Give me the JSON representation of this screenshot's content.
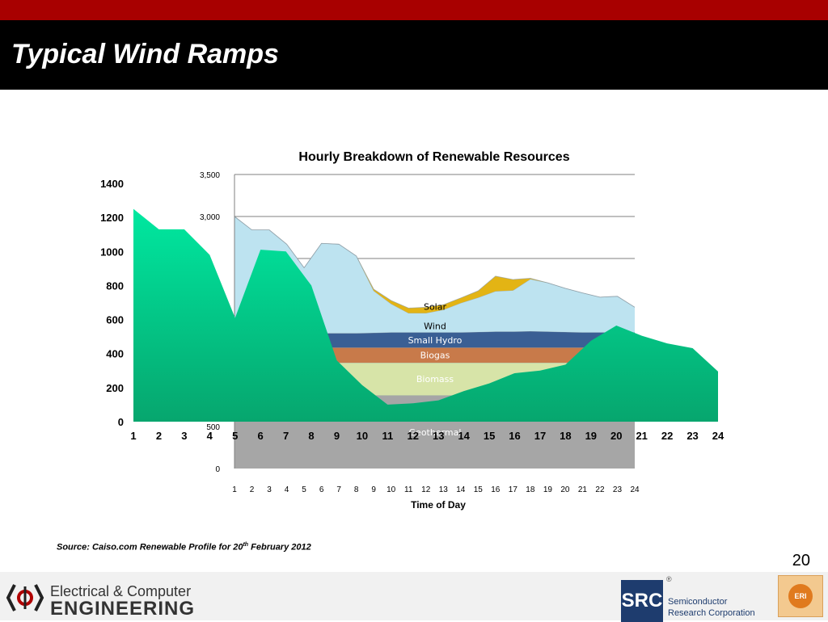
{
  "slide": {
    "title": "Typical Wind Ramps",
    "page_number": "20",
    "source_prefix": "Source: Caiso.com Renewable Profile for 20",
    "source_sup": "th",
    "source_suffix": " February 2012"
  },
  "footer": {
    "ece_line1": "Electrical & Computer",
    "ece_line2": "ENGINEERING",
    "src_abbr": "SRC",
    "src_reg": "®",
    "src_line1": "Semiconductor",
    "src_line2": "Research Corporation",
    "eri_label": "ERI"
  },
  "chart_data": [
    {
      "type": "area",
      "title": "Hourly Breakdown of Renewable Resources",
      "xlabel": "Time of Day",
      "ylabel": "",
      "ylim": [
        0,
        3500
      ],
      "yticks_visible": [
        "0",
        "500",
        "3,000",
        "3,500"
      ],
      "x": [
        1,
        2,
        3,
        4,
        5,
        6,
        7,
        8,
        9,
        10,
        11,
        12,
        13,
        14,
        15,
        16,
        17,
        18,
        19,
        20,
        21,
        22,
        23,
        24
      ],
      "stacked": true,
      "series": [
        {
          "name": "Geothermal",
          "color": "#a6a6a6",
          "values": [
            870,
            870,
            870,
            870,
            870,
            870,
            870,
            870,
            870,
            870,
            870,
            870,
            870,
            870,
            870,
            870,
            870,
            870,
            870,
            870,
            870,
            870,
            870,
            870
          ]
        },
        {
          "name": "Biomass",
          "color": "#d7e4a8",
          "values": [
            390,
            390,
            390,
            390,
            390,
            390,
            390,
            390,
            390,
            390,
            390,
            390,
            390,
            390,
            390,
            390,
            390,
            390,
            390,
            390,
            390,
            390,
            390,
            390
          ]
        },
        {
          "name": "Biogas",
          "color": "#c87a4a",
          "values": [
            180,
            180,
            180,
            180,
            180,
            180,
            180,
            180,
            180,
            180,
            180,
            180,
            180,
            180,
            180,
            180,
            180,
            180,
            180,
            180,
            180,
            180,
            180,
            180
          ]
        },
        {
          "name": "Small Hydro",
          "color": "#3a5f94",
          "values": [
            170,
            170,
            170,
            170,
            170,
            170,
            170,
            170,
            175,
            180,
            180,
            180,
            180,
            180,
            185,
            190,
            190,
            195,
            190,
            185,
            180,
            180,
            180,
            180
          ]
        },
        {
          "name": "Wind",
          "color": "#bde3f0",
          "values": [
            1390,
            1230,
            1230,
            1060,
            780,
            1070,
            1060,
            920,
            500,
            340,
            230,
            230,
            270,
            350,
            410,
            480,
            490,
            620,
            580,
            520,
            470,
            420,
            430,
            300
          ]
        },
        {
          "name": "Solar",
          "color": "#e3b414",
          "values": [
            0,
            0,
            0,
            0,
            0,
            0,
            0,
            0,
            20,
            40,
            60,
            70,
            60,
            60,
            80,
            180,
            130,
            10,
            0,
            0,
            0,
            0,
            0,
            0
          ]
        }
      ]
    },
    {
      "type": "area",
      "title": "",
      "xlabel": "",
      "ylabel": "",
      "ylim": [
        0,
        1400
      ],
      "yticks": [
        "0",
        "200",
        "400",
        "600",
        "800",
        "1000",
        "1200",
        "1400"
      ],
      "x": [
        1,
        2,
        3,
        4,
        5,
        6,
        7,
        8,
        9,
        10,
        11,
        12,
        13,
        14,
        15,
        16,
        17,
        18,
        19,
        20,
        21,
        22,
        23,
        24
      ],
      "series": [
        {
          "color": "#1dd898",
          "values": [
            1250,
            1130,
            1130,
            980,
            610,
            1010,
            1000,
            800,
            360,
            215,
            100,
            108,
            125,
            180,
            225,
            285,
            300,
            335,
            475,
            565,
            505,
            460,
            432,
            295
          ]
        }
      ]
    }
  ]
}
